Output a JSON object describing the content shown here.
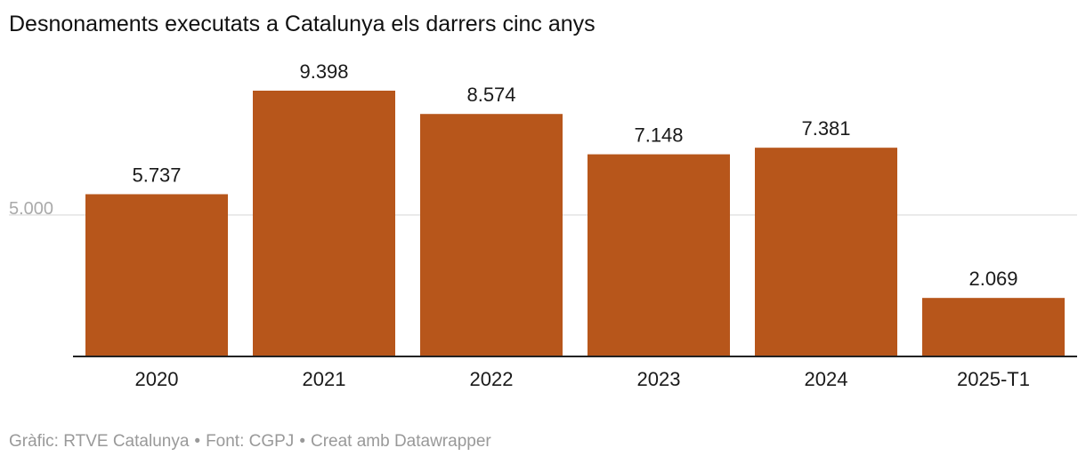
{
  "title": "Desnonaments executats a Catalunya els darrers cinc anys",
  "footer": {
    "credit": "Gràfic: RTVE Catalunya",
    "source": "Font: CGPJ",
    "tool": "Creat amb Datawrapper",
    "separator": "•"
  },
  "colors": {
    "bar": "#b7561b",
    "grid": "#e3e3e3",
    "axis": "#222222",
    "tick_label": "#aaaaaa",
    "value_label": "#1a1a1a"
  },
  "chart_data": {
    "type": "bar",
    "categories": [
      "2020",
      "2021",
      "2022",
      "2023",
      "2024",
      "2025-T1"
    ],
    "values": [
      5737,
      9398,
      8574,
      7148,
      7381,
      2069
    ],
    "value_labels": [
      "5.737",
      "9.398",
      "8.574",
      "7.148",
      "7.381",
      "2.069"
    ],
    "y_ticks": [
      5000
    ],
    "y_tick_labels": [
      "5.000"
    ],
    "ylim": [
      0,
      9398
    ],
    "grid": true,
    "xlabel": "",
    "ylabel": ""
  }
}
